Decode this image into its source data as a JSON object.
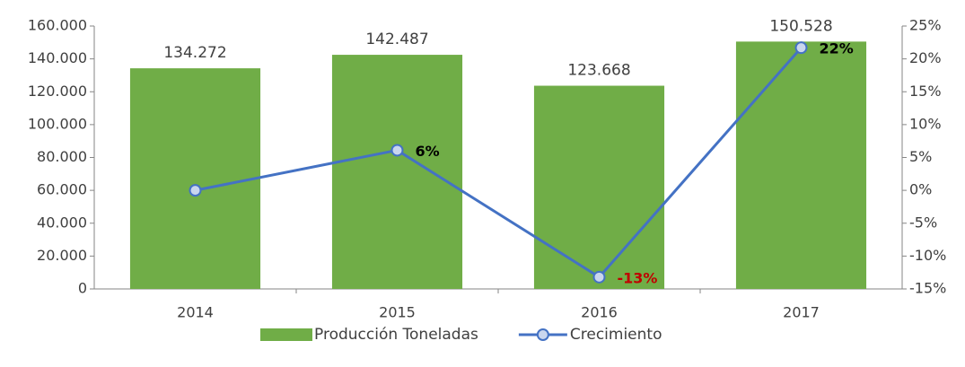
{
  "chart_data": {
    "type": "bar-line",
    "categories": [
      "2014",
      "2015",
      "2016",
      "2017"
    ],
    "series": [
      {
        "name": "Producción Toneladas",
        "type": "bar",
        "color": "#70ad47",
        "values": [
          134272,
          142487,
          123668,
          150528
        ],
        "value_labels": [
          "134.272",
          "142.487",
          "123.668",
          "150.528"
        ]
      },
      {
        "name": "Crecimiento",
        "type": "line",
        "axis": "y2",
        "color": "#4472c4",
        "values": [
          0,
          6.1,
          -13.2,
          21.7
        ],
        "value_labels": [
          null,
          "6%",
          "-13%",
          "22%"
        ],
        "label_colors": [
          null,
          "#000000",
          "#c00000",
          "#000000"
        ]
      }
    ],
    "ylim": [
      0,
      160000
    ],
    "yticks": [
      0,
      {
        "value": 20000,
        "label": "20.000"
      },
      {
        "value": 40000,
        "label": "40.000"
      },
      {
        "value": 60000,
        "label": "60.000"
      },
      {
        "value": 80000,
        "label": "80.000"
      },
      {
        "value": 100000,
        "label": "100.000"
      },
      {
        "value": 120000,
        "label": "120.000"
      },
      {
        "value": 140000,
        "label": "140.000"
      },
      {
        "value": 160000,
        "label": "160.000"
      }
    ],
    "y2lim": [
      -15,
      25
    ],
    "y2ticks": [
      {
        "value": -15,
        "label": "-15%"
      },
      {
        "value": -10,
        "label": "-10%"
      },
      {
        "value": -5,
        "label": "-5%"
      },
      {
        "value": 0,
        "label": "0%"
      },
      {
        "value": 5,
        "label": "5%"
      },
      {
        "value": 10,
        "label": "10%"
      },
      {
        "value": 15,
        "label": "15%"
      },
      {
        "value": 20,
        "label": "20%"
      },
      {
        "value": 25,
        "label": "25%"
      }
    ],
    "legend": "bottom"
  }
}
